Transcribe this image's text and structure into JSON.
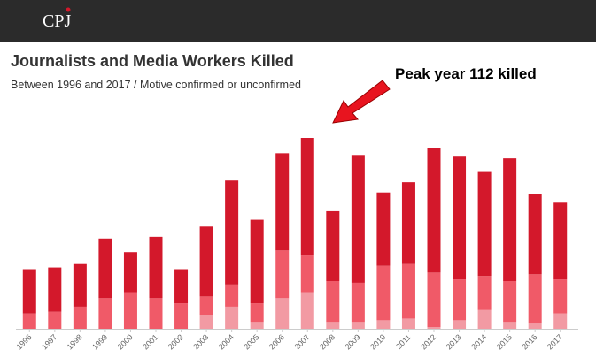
{
  "header": {
    "logo": "CPJ"
  },
  "chart_data": {
    "type": "stacked-bar",
    "title": "Journalists and Media Workers Killed",
    "subtitle": "Between 1996 and 2017 / Motive confirmed or unconfirmed",
    "annotation": "Peak year 112 killed",
    "categories": [
      "1996",
      "1997",
      "1998",
      "1999",
      "2000",
      "2001",
      "2002",
      "2003",
      "2004",
      "2005",
      "2006",
      "2007",
      "2008",
      "2009",
      "2010",
      "2011",
      "2012",
      "2013",
      "2014",
      "2015",
      "2016",
      "2017"
    ],
    "series": [
      {
        "color": "#f29aa3",
        "values": [
          0,
          0,
          0,
          0,
          0,
          0,
          0,
          8,
          13,
          4,
          18,
          21,
          4,
          4,
          5,
          6,
          1,
          5,
          11,
          4,
          3,
          9
        ]
      },
      {
        "color": "#f05a68",
        "values": [
          9,
          10,
          13,
          18,
          21,
          18,
          15,
          11,
          13,
          11,
          28,
          22,
          24,
          23,
          32,
          32,
          32,
          24,
          20,
          24,
          29,
          20
        ]
      },
      {
        "color": "#d3182b",
        "values": [
          26,
          26,
          25,
          35,
          24,
          36,
          20,
          41,
          61,
          49,
          57,
          69,
          41,
          75,
          43,
          48,
          73,
          72,
          61,
          72,
          47,
          45
        ]
      }
    ],
    "ylim": [
      0,
      120
    ]
  }
}
